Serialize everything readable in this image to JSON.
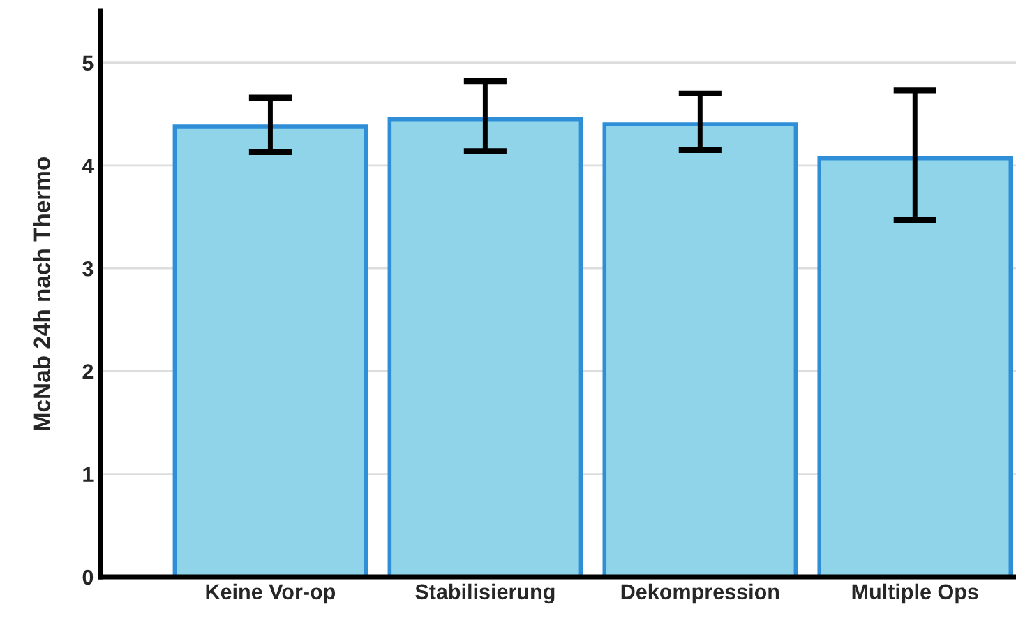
{
  "chart_data": {
    "type": "bar",
    "ylabel": "McNab 24h nach Thermo",
    "categories": [
      "Keine Vor-op",
      "Stabilisierung",
      "Dekompression",
      "Multiple Ops"
    ],
    "values": [
      4.38,
      4.45,
      4.4,
      4.07
    ],
    "errors": [
      [
        4.13,
        4.66
      ],
      [
        4.14,
        4.82
      ],
      [
        4.15,
        4.7
      ],
      [
        3.47,
        4.73
      ]
    ],
    "color": "#8fd4e8",
    "ylim": [
      0,
      5.5
    ],
    "yticks": [
      0,
      1,
      2,
      3,
      4,
      5
    ],
    "grid": "y"
  }
}
